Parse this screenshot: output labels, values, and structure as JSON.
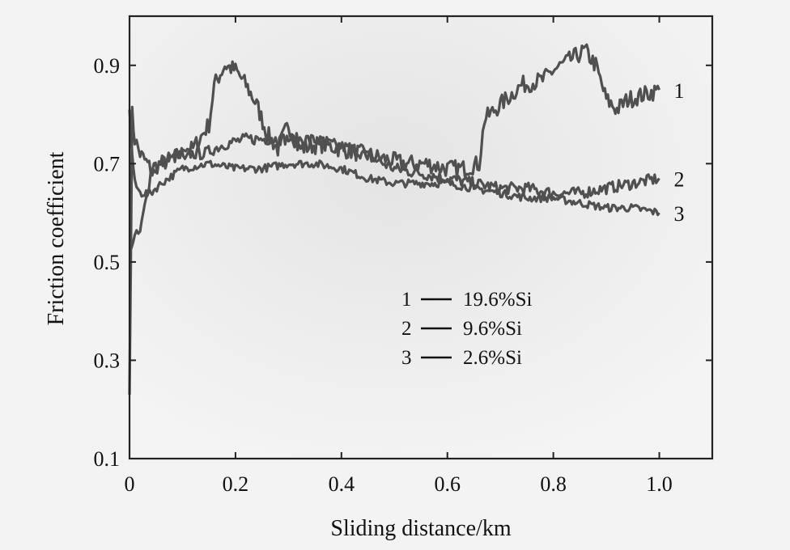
{
  "chart_data": {
    "type": "line",
    "xlabel": "Sliding distance/km",
    "ylabel": "Friction coefficient",
    "xlim": [
      0,
      1.1
    ],
    "ylim": [
      0.1,
      1.0
    ],
    "xticks": [
      "0",
      "0.2",
      "0.4",
      "0.6",
      "0.8",
      "1.0"
    ],
    "xtick_values": [
      0,
      0.2,
      0.4,
      0.6,
      0.8,
      1.0
    ],
    "yticks": [
      "0.1",
      "0.3",
      "0.5",
      "0.7",
      "0.9"
    ],
    "ytick_values": [
      0.1,
      0.3,
      0.5,
      0.7,
      0.9
    ],
    "grid": false,
    "legend_position": "center",
    "series_color": "#505050",
    "series": [
      {
        "tag": "1",
        "name": "19.6%Si",
        "noise": 0.018,
        "x": [
          0.0,
          0.005,
          0.01,
          0.02,
          0.04,
          0.08,
          0.12,
          0.15,
          0.16,
          0.18,
          0.2,
          0.22,
          0.24,
          0.26,
          0.28,
          0.3,
          0.32,
          0.36,
          0.4,
          0.44,
          0.48,
          0.52,
          0.56,
          0.6,
          0.63,
          0.66,
          0.67,
          0.7,
          0.74,
          0.78,
          0.8,
          0.83,
          0.86,
          0.88,
          0.9,
          0.92,
          0.94,
          0.97,
          1.0
        ],
        "y": [
          0.23,
          0.8,
          0.75,
          0.72,
          0.69,
          0.71,
          0.73,
          0.78,
          0.86,
          0.9,
          0.89,
          0.86,
          0.82,
          0.76,
          0.73,
          0.78,
          0.73,
          0.74,
          0.73,
          0.72,
          0.71,
          0.7,
          0.7,
          0.69,
          0.69,
          0.7,
          0.79,
          0.82,
          0.86,
          0.87,
          0.89,
          0.91,
          0.93,
          0.9,
          0.83,
          0.81,
          0.83,
          0.84,
          0.85
        ]
      },
      {
        "tag": "2",
        "name": "9.6%Si",
        "noise": 0.012,
        "x": [
          0.0,
          0.01,
          0.02,
          0.04,
          0.06,
          0.08,
          0.1,
          0.14,
          0.18,
          0.22,
          0.26,
          0.3,
          0.34,
          0.38,
          0.42,
          0.46,
          0.5,
          0.55,
          0.6,
          0.65,
          0.7,
          0.75,
          0.8,
          0.85,
          0.9,
          0.95,
          1.0
        ],
        "y": [
          0.53,
          0.55,
          0.56,
          0.68,
          0.7,
          0.71,
          0.72,
          0.72,
          0.74,
          0.75,
          0.75,
          0.75,
          0.75,
          0.74,
          0.73,
          0.71,
          0.69,
          0.68,
          0.67,
          0.66,
          0.65,
          0.65,
          0.64,
          0.64,
          0.65,
          0.66,
          0.67
        ]
      },
      {
        "tag": "3",
        "name": "2.6%Si",
        "noise": 0.008,
        "x": [
          0.0,
          0.005,
          0.01,
          0.02,
          0.04,
          0.06,
          0.1,
          0.15,
          0.2,
          0.25,
          0.3,
          0.35,
          0.4,
          0.45,
          0.5,
          0.55,
          0.6,
          0.65,
          0.7,
          0.75,
          0.8,
          0.85,
          0.9,
          0.95,
          1.0
        ],
        "y": [
          0.81,
          0.72,
          0.66,
          0.64,
          0.64,
          0.66,
          0.69,
          0.7,
          0.69,
          0.69,
          0.7,
          0.7,
          0.69,
          0.67,
          0.66,
          0.66,
          0.66,
          0.65,
          0.64,
          0.63,
          0.63,
          0.62,
          0.61,
          0.61,
          0.6
        ]
      }
    ],
    "legend": [
      {
        "tag": "1",
        "label": "19.6%Si"
      },
      {
        "tag": "2",
        "label": "9.6%Si"
      },
      {
        "tag": "3",
        "label": "2.6%Si"
      }
    ]
  }
}
